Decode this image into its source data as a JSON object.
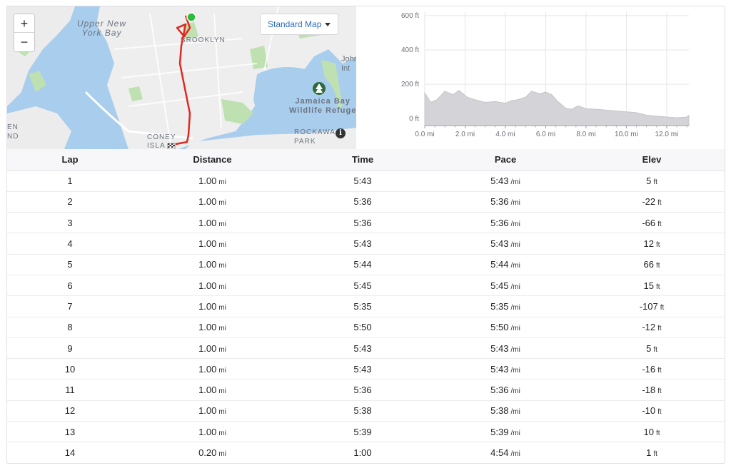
{
  "map": {
    "zoom_in_label": "+",
    "zoom_out_label": "−",
    "map_type_label": "Standard Map",
    "labels": {
      "upper_bay": "Upper New\nYork Bay",
      "brooklyn": "BROOKLYN",
      "jamaica_bay": "Jamaica Bay\nWildlife Refuge",
      "coney_island": "CONEY\nISLA",
      "rockaway": "ROCKAWA\nPARK",
      "john": "John\nInt",
      "en": "EN\nND"
    },
    "colors": {
      "water": "#a9cdec",
      "land": "#eeeeee",
      "park": "#bfe0b0",
      "route": "#e0291f",
      "start_marker": "#2dbb3a"
    },
    "icons": [
      "zoom-in-icon",
      "zoom-out-icon",
      "dropdown-caret-icon",
      "park-tree-icon",
      "info-icon",
      "start-marker-icon",
      "finish-flag-icon"
    ]
  },
  "chart_data": {
    "type": "area",
    "x_unit": "mi",
    "y_unit": "ft",
    "xlim": [
      0,
      13.1
    ],
    "ylim": [
      -40,
      620
    ],
    "y_ticks": [
      0,
      200,
      400,
      600
    ],
    "y_tick_labels": [
      "0 ft",
      "200 ft",
      "400 ft",
      "600 ft"
    ],
    "x_ticks": [
      0,
      2,
      4,
      6,
      8,
      10,
      12
    ],
    "x_tick_labels": [
      "0.0 mi",
      "2.0 mi",
      "4.0 mi",
      "6.0 mi",
      "8.0 mi",
      "10.0 mi",
      "12.0 mi"
    ],
    "grid": true,
    "fill_color": "#d4d4d8",
    "x": [
      0,
      0.3,
      0.6,
      1.0,
      1.4,
      1.7,
      2.1,
      2.5,
      3.0,
      3.5,
      4.0,
      4.3,
      4.6,
      5.0,
      5.3,
      5.7,
      6.0,
      6.3,
      6.6,
      7.0,
      7.3,
      7.6,
      8.0,
      8.5,
      9.0,
      9.5,
      10.0,
      10.5,
      11.0,
      11.5,
      12.0,
      12.5,
      13.0,
      13.1
    ],
    "y": [
      150,
      95,
      110,
      160,
      140,
      165,
      125,
      110,
      95,
      100,
      90,
      105,
      110,
      125,
      160,
      145,
      155,
      140,
      100,
      60,
      55,
      75,
      58,
      55,
      50,
      45,
      40,
      35,
      20,
      15,
      10,
      5,
      10,
      20
    ]
  },
  "table": {
    "headers": {
      "lap": "Lap",
      "distance": "Distance",
      "time": "Time",
      "pace": "Pace",
      "elev": "Elev"
    },
    "rows": [
      {
        "lap": "1",
        "distance": "1.00",
        "distance_unit": "mi",
        "time": "5:43",
        "pace": "5:43",
        "pace_unit": "/mi",
        "elev": "5",
        "elev_unit": "ft"
      },
      {
        "lap": "2",
        "distance": "1.00",
        "distance_unit": "mi",
        "time": "5:36",
        "pace": "5:36",
        "pace_unit": "/mi",
        "elev": "-22",
        "elev_unit": "ft"
      },
      {
        "lap": "3",
        "distance": "1.00",
        "distance_unit": "mi",
        "time": "5:36",
        "pace": "5:36",
        "pace_unit": "/mi",
        "elev": "-66",
        "elev_unit": "ft"
      },
      {
        "lap": "4",
        "distance": "1.00",
        "distance_unit": "mi",
        "time": "5:43",
        "pace": "5:43",
        "pace_unit": "/mi",
        "elev": "12",
        "elev_unit": "ft"
      },
      {
        "lap": "5",
        "distance": "1.00",
        "distance_unit": "mi",
        "time": "5:44",
        "pace": "5:44",
        "pace_unit": "/mi",
        "elev": "66",
        "elev_unit": "ft"
      },
      {
        "lap": "6",
        "distance": "1.00",
        "distance_unit": "mi",
        "time": "5:45",
        "pace": "5:45",
        "pace_unit": "/mi",
        "elev": "15",
        "elev_unit": "ft"
      },
      {
        "lap": "7",
        "distance": "1.00",
        "distance_unit": "mi",
        "time": "5:35",
        "pace": "5:35",
        "pace_unit": "/mi",
        "elev": "-107",
        "elev_unit": "ft"
      },
      {
        "lap": "8",
        "distance": "1.00",
        "distance_unit": "mi",
        "time": "5:50",
        "pace": "5:50",
        "pace_unit": "/mi",
        "elev": "-12",
        "elev_unit": "ft"
      },
      {
        "lap": "9",
        "distance": "1.00",
        "distance_unit": "mi",
        "time": "5:43",
        "pace": "5:43",
        "pace_unit": "/mi",
        "elev": "5",
        "elev_unit": "ft"
      },
      {
        "lap": "10",
        "distance": "1.00",
        "distance_unit": "mi",
        "time": "5:43",
        "pace": "5:43",
        "pace_unit": "/mi",
        "elev": "-16",
        "elev_unit": "ft"
      },
      {
        "lap": "11",
        "distance": "1.00",
        "distance_unit": "mi",
        "time": "5:36",
        "pace": "5:36",
        "pace_unit": "/mi",
        "elev": "-18",
        "elev_unit": "ft"
      },
      {
        "lap": "12",
        "distance": "1.00",
        "distance_unit": "mi",
        "time": "5:38",
        "pace": "5:38",
        "pace_unit": "/mi",
        "elev": "-10",
        "elev_unit": "ft"
      },
      {
        "lap": "13",
        "distance": "1.00",
        "distance_unit": "mi",
        "time": "5:39",
        "pace": "5:39",
        "pace_unit": "/mi",
        "elev": "10",
        "elev_unit": "ft"
      },
      {
        "lap": "14",
        "distance": "0.20",
        "distance_unit": "mi",
        "time": "1:00",
        "pace": "4:54",
        "pace_unit": "/mi",
        "elev": "1",
        "elev_unit": "ft"
      }
    ]
  }
}
